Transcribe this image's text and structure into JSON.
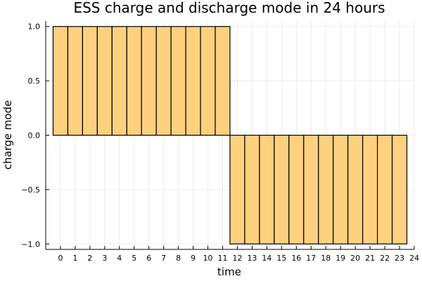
{
  "chart_data": {
    "type": "bar",
    "title": "ESS charge and discharge mode in 24 hours",
    "xlabel": "time",
    "ylabel": "charge mode",
    "categories": [
      0,
      1,
      2,
      3,
      4,
      5,
      6,
      7,
      8,
      9,
      10,
      11,
      12,
      13,
      14,
      15,
      16,
      17,
      18,
      19,
      20,
      21,
      22,
      23
    ],
    "values": [
      1,
      1,
      1,
      1,
      1,
      1,
      1,
      1,
      1,
      1,
      1,
      1,
      -1,
      -1,
      -1,
      -1,
      -1,
      -1,
      -1,
      -1,
      -1,
      -1,
      -1,
      -1
    ],
    "xlim": [
      -1,
      24
    ],
    "ylim": [
      -1.05,
      1.05
    ],
    "x_ticks": [
      0,
      1,
      2,
      3,
      4,
      5,
      6,
      7,
      8,
      9,
      10,
      11,
      12,
      13,
      14,
      15,
      16,
      17,
      18,
      19,
      20,
      21,
      22,
      23,
      24
    ],
    "y_ticks": [
      {
        "value": 1.0,
        "label": "1.0"
      },
      {
        "value": 0.5,
        "label": "0.5"
      },
      {
        "value": 0.0,
        "label": "0.0"
      },
      {
        "value": -0.5,
        "label": "−0.5"
      },
      {
        "value": -1.0,
        "label": "−1.0"
      }
    ],
    "bar_color": "#ffd17f",
    "grid": true,
    "legend": "none"
  }
}
